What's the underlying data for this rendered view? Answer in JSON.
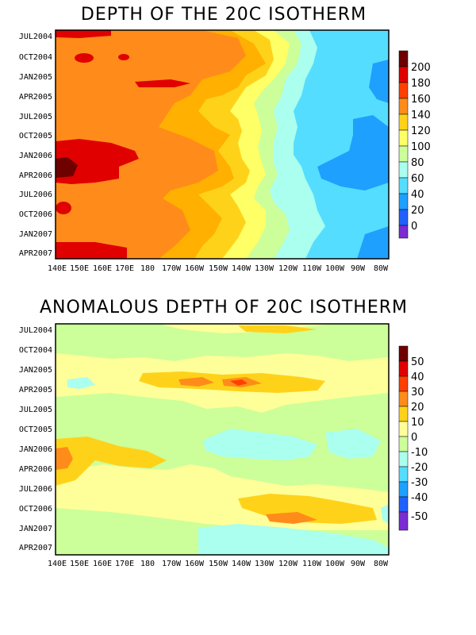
{
  "chart_data": [
    {
      "type": "heatmap",
      "title": "DEPTH OF THE 20C ISOTHERM",
      "x_ticks": [
        "140E",
        "150E",
        "160E",
        "170E",
        "180",
        "170W",
        "160W",
        "150W",
        "140W",
        "130W",
        "120W",
        "110W",
        "100W",
        "90W",
        "80W"
      ],
      "y_ticks": [
        "JUL2004",
        "OCT2004",
        "JAN2005",
        "APR2005",
        "JUL2005",
        "OCT2005",
        "JAN2006",
        "APR2006",
        "JUL2006",
        "OCT2006",
        "JAN2007",
        "APR2007"
      ],
      "colorbar": {
        "labels": [
          "200",
          "180",
          "160",
          "140",
          "120",
          "100",
          "80",
          "60",
          "40",
          "20",
          "0"
        ],
        "colors": [
          "#6e0000",
          "#e00000",
          "#ff4000",
          "#ff8c1a",
          "#ffd21a",
          "#ffff66",
          "#ccff99",
          "#aaffee",
          "#55ddff",
          "#1ea0ff",
          "#2060ff",
          "#7b2cd2"
        ]
      },
      "summary": {
        "west_depth_range": [
          160,
          200
        ],
        "east_depth_range": [
          40,
          80
        ],
        "max_depth": 200
      }
    },
    {
      "type": "heatmap",
      "title": "ANOMALOUS DEPTH OF 20C ISOTHERM",
      "x_ticks": [
        "140E",
        "150E",
        "160E",
        "170E",
        "180",
        "170W",
        "160W",
        "150W",
        "140W",
        "130W",
        "120W",
        "110W",
        "100W",
        "90W",
        "80W"
      ],
      "y_ticks": [
        "JUL2004",
        "OCT2004",
        "JAN2005",
        "APR2005",
        "JUL2005",
        "OCT2005",
        "JAN2006",
        "APR2006",
        "JUL2006",
        "OCT2006",
        "JAN2007",
        "APR2007"
      ],
      "colorbar": {
        "labels": [
          "50",
          "40",
          "30",
          "20",
          "10",
          "0",
          "-10",
          "-20",
          "-30",
          "-40",
          "-50"
        ],
        "colors": [
          "#6e0000",
          "#e00000",
          "#ff4000",
          "#ff8c1a",
          "#ffd21a",
          "#ffff99",
          "#ccff99",
          "#aaffee",
          "#55ddff",
          "#1ea0ff",
          "#2060ff",
          "#7b2cd2"
        ]
      },
      "summary": {
        "anomaly_range": [
          -30,
          40
        ]
      }
    }
  ]
}
